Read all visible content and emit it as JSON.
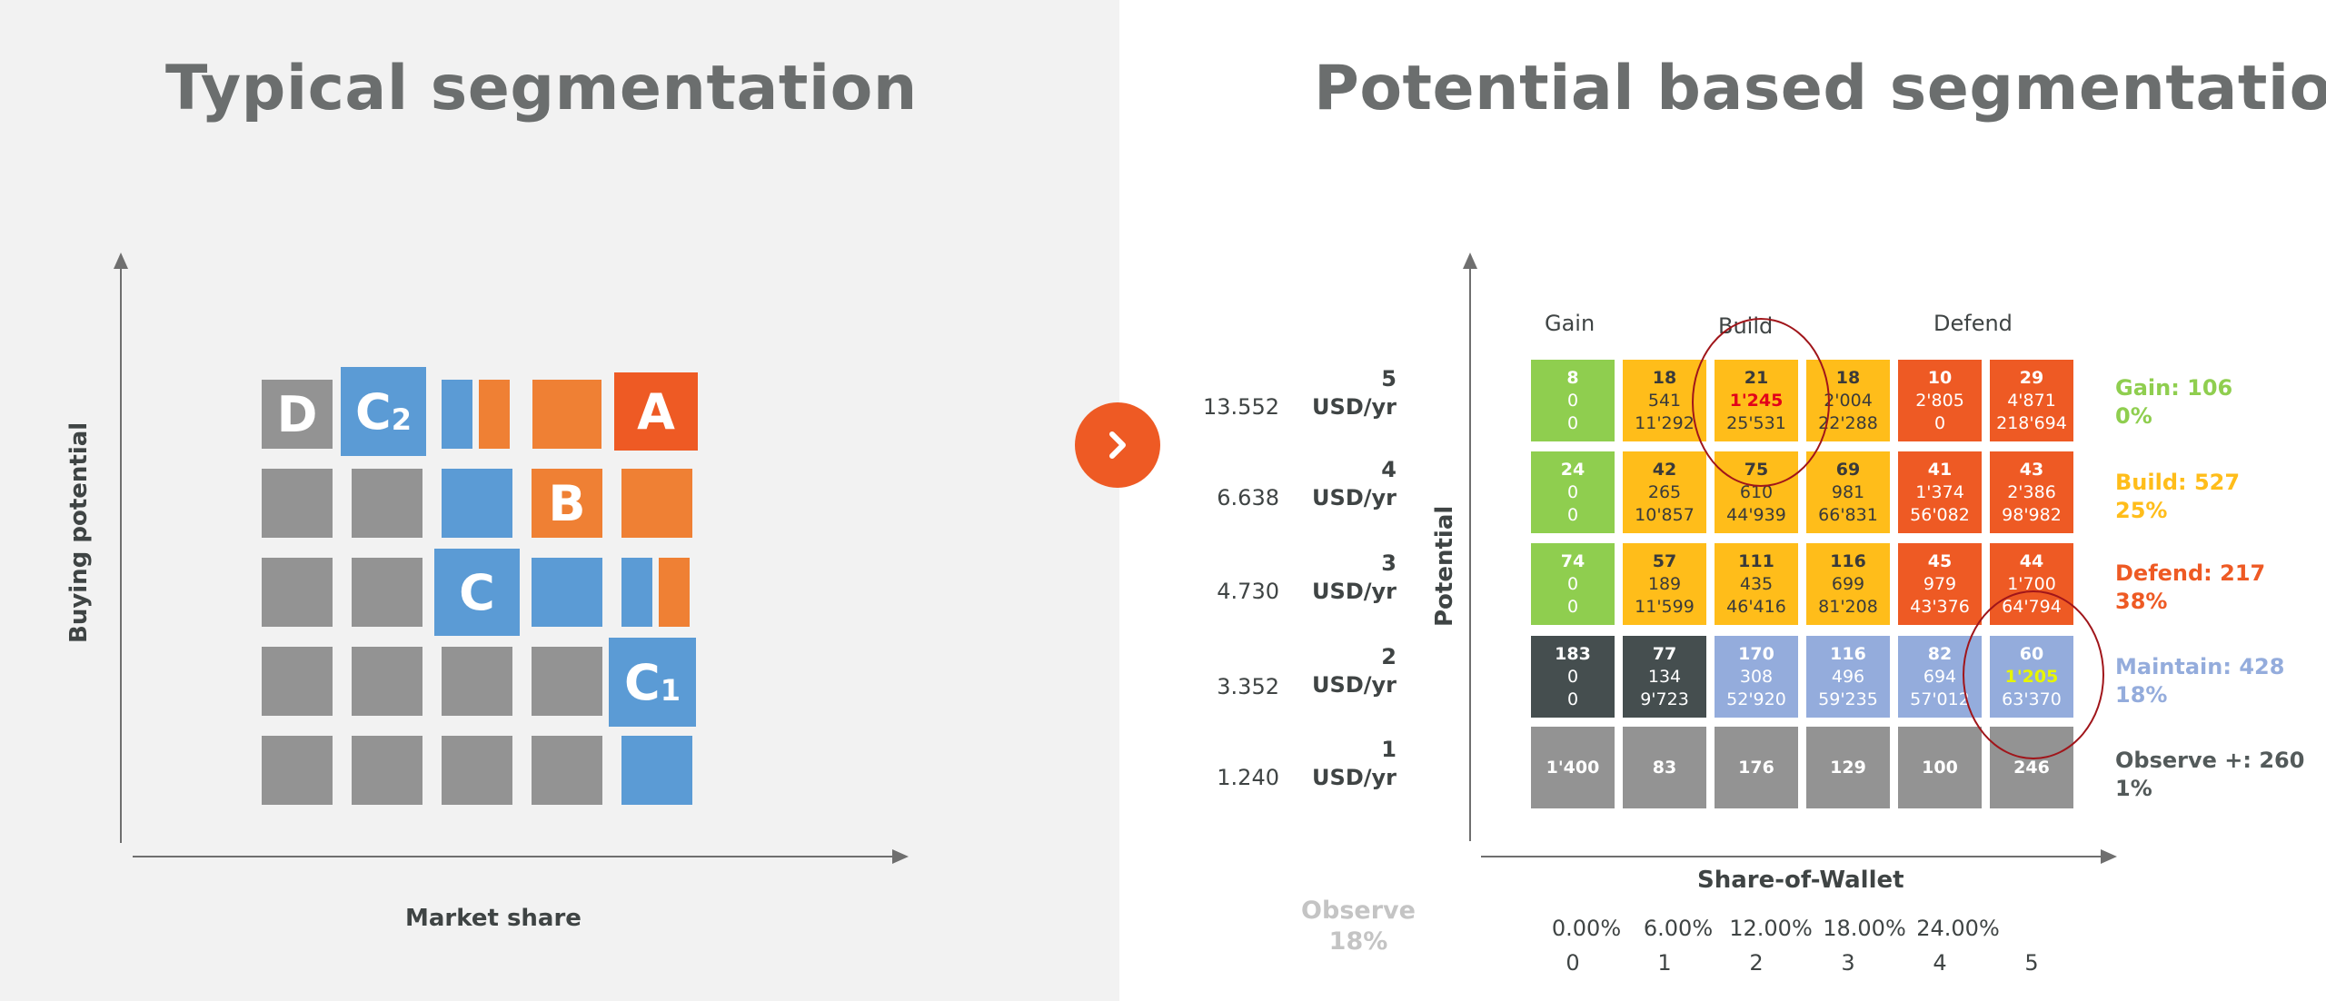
{
  "left": {
    "title": "Typical segmentation",
    "y_axis_label": "Buying potential",
    "x_axis_label": "Market share",
    "block_labels": {
      "d": "D",
      "c2": "C",
      "c2_sub": "2",
      "a": "A",
      "b": "B",
      "c": "C",
      "c1": "C",
      "c1_sub": "1"
    }
  },
  "next_button_icon": "chevron-right-icon",
  "right": {
    "title": "Potential based segmentation",
    "y_axis_label": "Potential",
    "x_axis_label": "Share-of-Wallet",
    "column_headers": {
      "gain": "Gain",
      "build": "Build",
      "defend": "Defend"
    },
    "rows": [
      {
        "level": "5",
        "value": "13.552",
        "unit": "USD/yr"
      },
      {
        "level": "4",
        "value": "6.638",
        "unit": "USD/yr"
      },
      {
        "level": "3",
        "value": "4.730",
        "unit": "USD/yr"
      },
      {
        "level": "2",
        "value": "3.352",
        "unit": "USD/yr"
      },
      {
        "level": "1",
        "value": "1.240",
        "unit": "USD/yr"
      }
    ],
    "grid": [
      [
        [
          "8",
          "0",
          "0"
        ],
        [
          "18",
          "541",
          "11'292"
        ],
        [
          "21",
          "1'245",
          "25'531"
        ],
        [
          "18",
          "2'004",
          "22'288"
        ],
        [
          "10",
          "2'805",
          "0"
        ],
        [
          "29",
          "4'871",
          "218'694"
        ]
      ],
      [
        [
          "24",
          "0",
          "0"
        ],
        [
          "42",
          "265",
          "10'857"
        ],
        [
          "75",
          "610",
          "44'939"
        ],
        [
          "69",
          "981",
          "66'831"
        ],
        [
          "41",
          "1'374",
          "56'082"
        ],
        [
          "43",
          "2'386",
          "98'982"
        ]
      ],
      [
        [
          "74",
          "0",
          "0"
        ],
        [
          "57",
          "189",
          "11'599"
        ],
        [
          "111",
          "435",
          "46'416"
        ],
        [
          "116",
          "699",
          "81'208"
        ],
        [
          "45",
          "979",
          "43'376"
        ],
        [
          "44",
          "1'700",
          "64'794"
        ]
      ],
      [
        [
          "183",
          "0",
          "0"
        ],
        [
          "77",
          "134",
          "9'723"
        ],
        [
          "170",
          "308",
          "52'920"
        ],
        [
          "116",
          "496",
          "59'235"
        ],
        [
          "82",
          "694",
          "57'012"
        ],
        [
          "60",
          "1'205",
          "63'370"
        ]
      ],
      [
        [
          "1'400"
        ],
        [
          "83"
        ],
        [
          "176"
        ],
        [
          "129"
        ],
        [
          "100"
        ],
        [
          "246"
        ]
      ]
    ],
    "legend": [
      {
        "label": "Gain: 106",
        "pct": "0%",
        "color": "#8fce4f"
      },
      {
        "label": "Build: 527",
        "pct": "25%",
        "color": "#ffbd1a"
      },
      {
        "label": "Defend: 217",
        "pct": "38%",
        "color": "#ee5a24"
      },
      {
        "label": "Maintain: 428",
        "pct": "18%",
        "color": "#94acdc"
      },
      {
        "label": "Observe +: 260",
        "pct": "1%",
        "color": "#535a5a"
      }
    ],
    "observe": {
      "label": "Observe",
      "pct": "18%"
    },
    "sow_percentages": [
      "0.00%",
      "6.00%",
      "12.00%",
      "18.00%",
      "24.00%"
    ],
    "sow_indices": [
      "0",
      "1",
      "2",
      "3",
      "4",
      "5"
    ]
  }
}
